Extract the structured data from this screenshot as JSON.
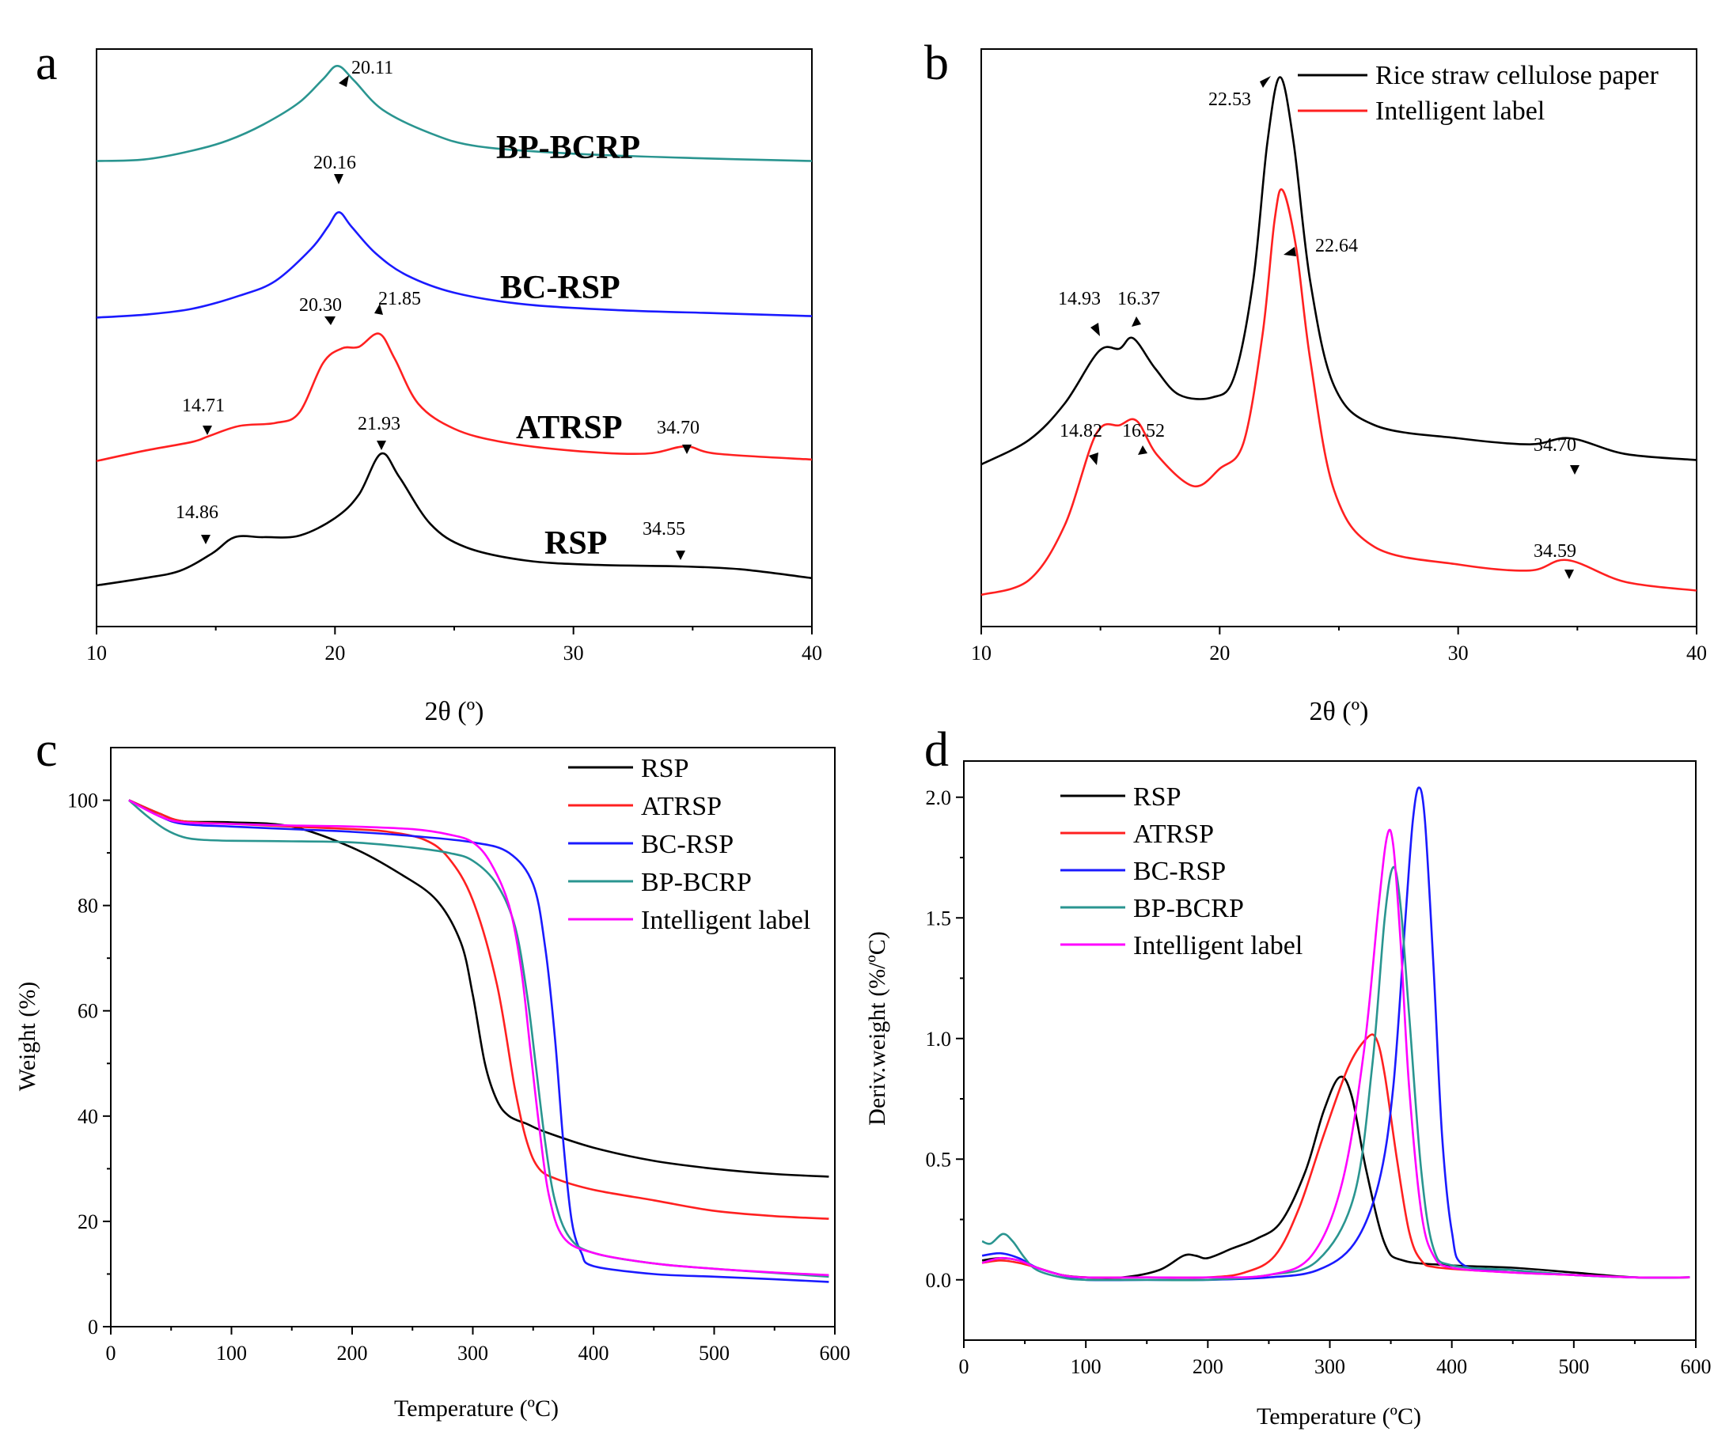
{
  "chart_data": [
    {
      "panel": "a",
      "type": "line",
      "xlabel": "2θ (º)",
      "ylabel": "",
      "xlim": [
        10,
        40
      ],
      "xticks": [
        10,
        20,
        30,
        40
      ],
      "series": [
        {
          "name": "BP-BCRP",
          "color": "#2a9590",
          "x": [
            10,
            12,
            14,
            15.5,
            17,
            18.5,
            19.5,
            20.11,
            20.8,
            22,
            24,
            26,
            30,
            35,
            40
          ],
          "y": [
            2.9,
            2.91,
            2.97,
            3.04,
            3.15,
            3.3,
            3.46,
            3.55,
            3.45,
            3.25,
            3.09,
            3.0,
            2.95,
            2.92,
            2.9
          ]
        },
        {
          "name": "BC-RSP",
          "color": "#1a1aff",
          "x": [
            10,
            12,
            14,
            16,
            17.5,
            19,
            19.7,
            20.16,
            20.7,
            21.7,
            23,
            25,
            28,
            32,
            36,
            40
          ],
          "y": [
            1.83,
            1.85,
            1.89,
            1.98,
            2.08,
            2.3,
            2.45,
            2.55,
            2.45,
            2.27,
            2.12,
            2.0,
            1.92,
            1.88,
            1.86,
            1.84
          ]
        },
        {
          "name": "ATRSP",
          "color": "#ff2020",
          "x": [
            10,
            12,
            14,
            14.71,
            16,
            17.5,
            18.5,
            19.5,
            20.3,
            21,
            21.85,
            22.5,
            23.5,
            25,
            27,
            30,
            33,
            34.7,
            36,
            40
          ],
          "y": [
            0.85,
            0.92,
            0.98,
            1.02,
            1.09,
            1.11,
            1.18,
            1.52,
            1.62,
            1.63,
            1.72,
            1.55,
            1.24,
            1.07,
            0.98,
            0.92,
            0.9,
            0.95,
            0.9,
            0.86
          ]
        },
        {
          "name": "RSP",
          "color": "#000000",
          "x": [
            10,
            12,
            13.5,
            14.86,
            15.8,
            17,
            18.5,
            20,
            21,
            21.93,
            22.7,
            24,
            25.5,
            28,
            31,
            34.55,
            37,
            40
          ],
          "y": [
            0.0,
            0.05,
            0.1,
            0.22,
            0.33,
            0.33,
            0.34,
            0.46,
            0.62,
            0.9,
            0.74,
            0.42,
            0.26,
            0.17,
            0.14,
            0.13,
            0.11,
            0.05
          ]
        }
      ],
      "curve_labels": [
        {
          "text": "BP-BCRP",
          "color": "#2a9590"
        },
        {
          "text": "BC-RSP",
          "color": "#1a1aff"
        },
        {
          "text": "ATRSP",
          "color": "#ff2020"
        },
        {
          "text": "RSP",
          "color": "#000000"
        }
      ],
      "annotations": [
        "20.11",
        "20.16",
        "20.30",
        "21.85",
        "14.71",
        "34.70",
        "21.93",
        "14.86",
        "34.55"
      ]
    },
    {
      "panel": "b",
      "type": "line",
      "xlabel": "2θ (º)",
      "ylabel": "",
      "xlim": [
        10,
        40
      ],
      "xticks": [
        10,
        20,
        30,
        40
      ],
      "legend": [
        "Rice straw cellulose paper",
        "Intelligent label"
      ],
      "series": [
        {
          "name": "Rice straw cellulose paper",
          "color": "#000000",
          "x": [
            10,
            12,
            13.5,
            14.93,
            15.8,
            16.37,
            17.3,
            18.3,
            19.7,
            20.6,
            21.4,
            22.0,
            22.53,
            23.1,
            23.8,
            24.8,
            26.5,
            30,
            33,
            34.7,
            37,
            40
          ],
          "y": [
            1.5,
            1.78,
            2.2,
            2.8,
            2.83,
            2.95,
            2.6,
            2.3,
            2.27,
            2.5,
            3.6,
            5.2,
            5.95,
            5.2,
            3.6,
            2.4,
            1.95,
            1.8,
            1.73,
            1.8,
            1.62,
            1.55
          ]
        },
        {
          "name": "Intelligent label",
          "color": "#ff2020",
          "x": [
            10,
            12,
            13.5,
            14.82,
            15.8,
            16.52,
            17.4,
            18.9,
            20.0,
            21.0,
            21.8,
            22.3,
            22.64,
            23.2,
            23.8,
            24.8,
            26.5,
            30,
            33,
            34.59,
            37,
            40
          ],
          "y": [
            0.0,
            0.17,
            0.8,
            1.85,
            1.95,
            2.0,
            1.6,
            1.25,
            1.45,
            1.75,
            3.0,
            4.3,
            4.65,
            4.0,
            2.7,
            1.2,
            0.55,
            0.35,
            0.28,
            0.4,
            0.15,
            0.05
          ]
        }
      ],
      "annotations": [
        "22.53",
        "22.64",
        "14.93",
        "16.37",
        "14.82",
        "16.52",
        "34.70",
        "34.59"
      ]
    },
    {
      "panel": "c",
      "type": "line",
      "xlabel": "Temperature (ºC)",
      "ylabel": "Weight (%)",
      "xlim": [
        0,
        600
      ],
      "ylim": [
        0,
        110
      ],
      "xticks": [
        0,
        100,
        200,
        300,
        400,
        500,
        600
      ],
      "yticks": [
        0,
        20,
        40,
        60,
        80,
        100
      ],
      "legend": [
        "RSP",
        "ATRSP",
        "BC-RSP",
        "BP-BCRP",
        "Intelligent label"
      ],
      "series": [
        {
          "name": "RSP",
          "color": "#000000",
          "x": [
            15,
            40,
            60,
            100,
            150,
            200,
            240,
            270,
            290,
            300,
            310,
            320,
            330,
            345,
            360,
            400,
            450,
            500,
            550,
            595
          ],
          "y": [
            100,
            97.5,
            96,
            95.8,
            95,
            91,
            86,
            81,
            73,
            63,
            50,
            43,
            40,
            38.5,
            37,
            34,
            31.5,
            30,
            29,
            28.5
          ]
        },
        {
          "name": "ATRSP",
          "color": "#ff2020",
          "x": [
            15,
            40,
            60,
            100,
            150,
            200,
            230,
            260,
            280,
            300,
            320,
            335,
            345,
            355,
            370,
            400,
            450,
            500,
            550,
            595
          ],
          "y": [
            100,
            97.5,
            96,
            95.5,
            95,
            94.5,
            94,
            92.5,
            89,
            81,
            65,
            45,
            35,
            30,
            28,
            26,
            24,
            22,
            21,
            20.5
          ]
        },
        {
          "name": "BC-RSP",
          "color": "#1a1aff",
          "x": [
            15,
            40,
            60,
            100,
            150,
            200,
            250,
            300,
            330,
            350,
            360,
            368,
            375,
            382,
            390,
            400,
            450,
            500,
            550,
            595
          ],
          "y": [
            100,
            97,
            95.5,
            95,
            94.5,
            94,
            93.2,
            92,
            90,
            84,
            72,
            55,
            35,
            20,
            14,
            11.5,
            10,
            9.5,
            9,
            8.5
          ]
        },
        {
          "name": "BP-BCRP",
          "color": "#2a9590",
          "x": [
            15,
            30,
            45,
            60,
            75,
            100,
            150,
            200,
            250,
            280,
            300,
            320,
            335,
            345,
            352,
            360,
            368,
            380,
            400,
            450,
            500,
            550,
            595
          ],
          "y": [
            100,
            97,
            94.5,
            93,
            92.5,
            92.3,
            92.2,
            92,
            91,
            90,
            88.5,
            84,
            76,
            63,
            50,
            35,
            24,
            17,
            14,
            12,
            11,
            10.2,
            9.5
          ]
        },
        {
          "name": "Intelligent label",
          "color": "#ff00ff",
          "x": [
            15,
            40,
            60,
            100,
            150,
            200,
            250,
            280,
            300,
            315,
            330,
            340,
            348,
            355,
            363,
            375,
            400,
            450,
            500,
            550,
            595
          ],
          "y": [
            100,
            97,
            95.8,
            95.5,
            95.2,
            95,
            94.5,
            93.5,
            92,
            88,
            80,
            68,
            52,
            38,
            25,
            17,
            14,
            12,
            11,
            10.3,
            9.8
          ]
        }
      ]
    },
    {
      "panel": "d",
      "type": "line",
      "xlabel": "Temperature (ºC)",
      "ylabel": "Deriv.weight (%/ºC)",
      "xlim": [
        0,
        600
      ],
      "ylim": [
        -0.25,
        2.15
      ],
      "xticks": [
        0,
        100,
        200,
        300,
        400,
        500,
        600
      ],
      "yticks": [
        0.0,
        0.5,
        1.0,
        1.5,
        2.0
      ],
      "legend": [
        "RSP",
        "ATRSP",
        "BC-RSP",
        "BP-BCRP",
        "Intelligent label"
      ],
      "series": [
        {
          "name": "RSP",
          "color": "#000000",
          "x": [
            15,
            30,
            45,
            60,
            80,
            100,
            130,
            160,
            180,
            190,
            200,
            220,
            240,
            260,
            280,
            295,
            308,
            318,
            330,
            345,
            360,
            400,
            450,
            500,
            550,
            595
          ],
          "y": [
            0.08,
            0.09,
            0.08,
            0.05,
            0.02,
            0.01,
            0.01,
            0.04,
            0.1,
            0.1,
            0.09,
            0.13,
            0.17,
            0.24,
            0.45,
            0.7,
            0.84,
            0.76,
            0.45,
            0.15,
            0.08,
            0.06,
            0.05,
            0.03,
            0.01,
            0.01
          ]
        },
        {
          "name": "ATRSP",
          "color": "#ff2020",
          "x": [
            15,
            30,
            45,
            60,
            80,
            100,
            150,
            200,
            230,
            255,
            275,
            295,
            315,
            330,
            338,
            345,
            355,
            365,
            375,
            390,
            450,
            500,
            550,
            595
          ],
          "y": [
            0.07,
            0.08,
            0.07,
            0.05,
            0.02,
            0.01,
            0.01,
            0.01,
            0.03,
            0.1,
            0.3,
            0.6,
            0.88,
            1.0,
            1.0,
            0.85,
            0.5,
            0.2,
            0.08,
            0.05,
            0.03,
            0.02,
            0.01,
            0.01
          ]
        },
        {
          "name": "BC-RSP",
          "color": "#1a1aff",
          "x": [
            15,
            30,
            45,
            60,
            80,
            100,
            150,
            200,
            250,
            290,
            320,
            340,
            352,
            362,
            368,
            373,
            378,
            385,
            392,
            400,
            410,
            450,
            500,
            550,
            595
          ],
          "y": [
            0.1,
            0.11,
            0.09,
            0.05,
            0.02,
            0.0,
            0.0,
            0.0,
            0.01,
            0.04,
            0.15,
            0.4,
            0.8,
            1.5,
            1.9,
            2.04,
            1.9,
            1.3,
            0.6,
            0.2,
            0.06,
            0.04,
            0.02,
            0.01,
            0.01
          ]
        },
        {
          "name": "BP-BCRP",
          "color": "#2a9590",
          "x": [
            15,
            22,
            32,
            40,
            50,
            60,
            80,
            100,
            150,
            200,
            250,
            290,
            320,
            335,
            345,
            352,
            358,
            365,
            375,
            385,
            400,
            450,
            500,
            550,
            595
          ],
          "y": [
            0.16,
            0.15,
            0.19,
            0.16,
            0.09,
            0.04,
            0.01,
            0.0,
            0.0,
            0.0,
            0.02,
            0.08,
            0.35,
            0.9,
            1.5,
            1.71,
            1.55,
            1.1,
            0.45,
            0.13,
            0.06,
            0.04,
            0.02,
            0.01,
            0.01
          ]
        },
        {
          "name": "Intelligent label",
          "color": "#ff00ff",
          "x": [
            15,
            30,
            45,
            60,
            80,
            100,
            150,
            200,
            250,
            285,
            310,
            328,
            340,
            347,
            352,
            358,
            365,
            375,
            385,
            400,
            450,
            500,
            550,
            595
          ],
          "y": [
            0.07,
            0.09,
            0.08,
            0.05,
            0.02,
            0.01,
            0.01,
            0.01,
            0.02,
            0.1,
            0.4,
            0.95,
            1.55,
            1.84,
            1.8,
            1.4,
            0.8,
            0.28,
            0.1,
            0.05,
            0.03,
            0.02,
            0.01,
            0.01
          ]
        }
      ]
    }
  ]
}
